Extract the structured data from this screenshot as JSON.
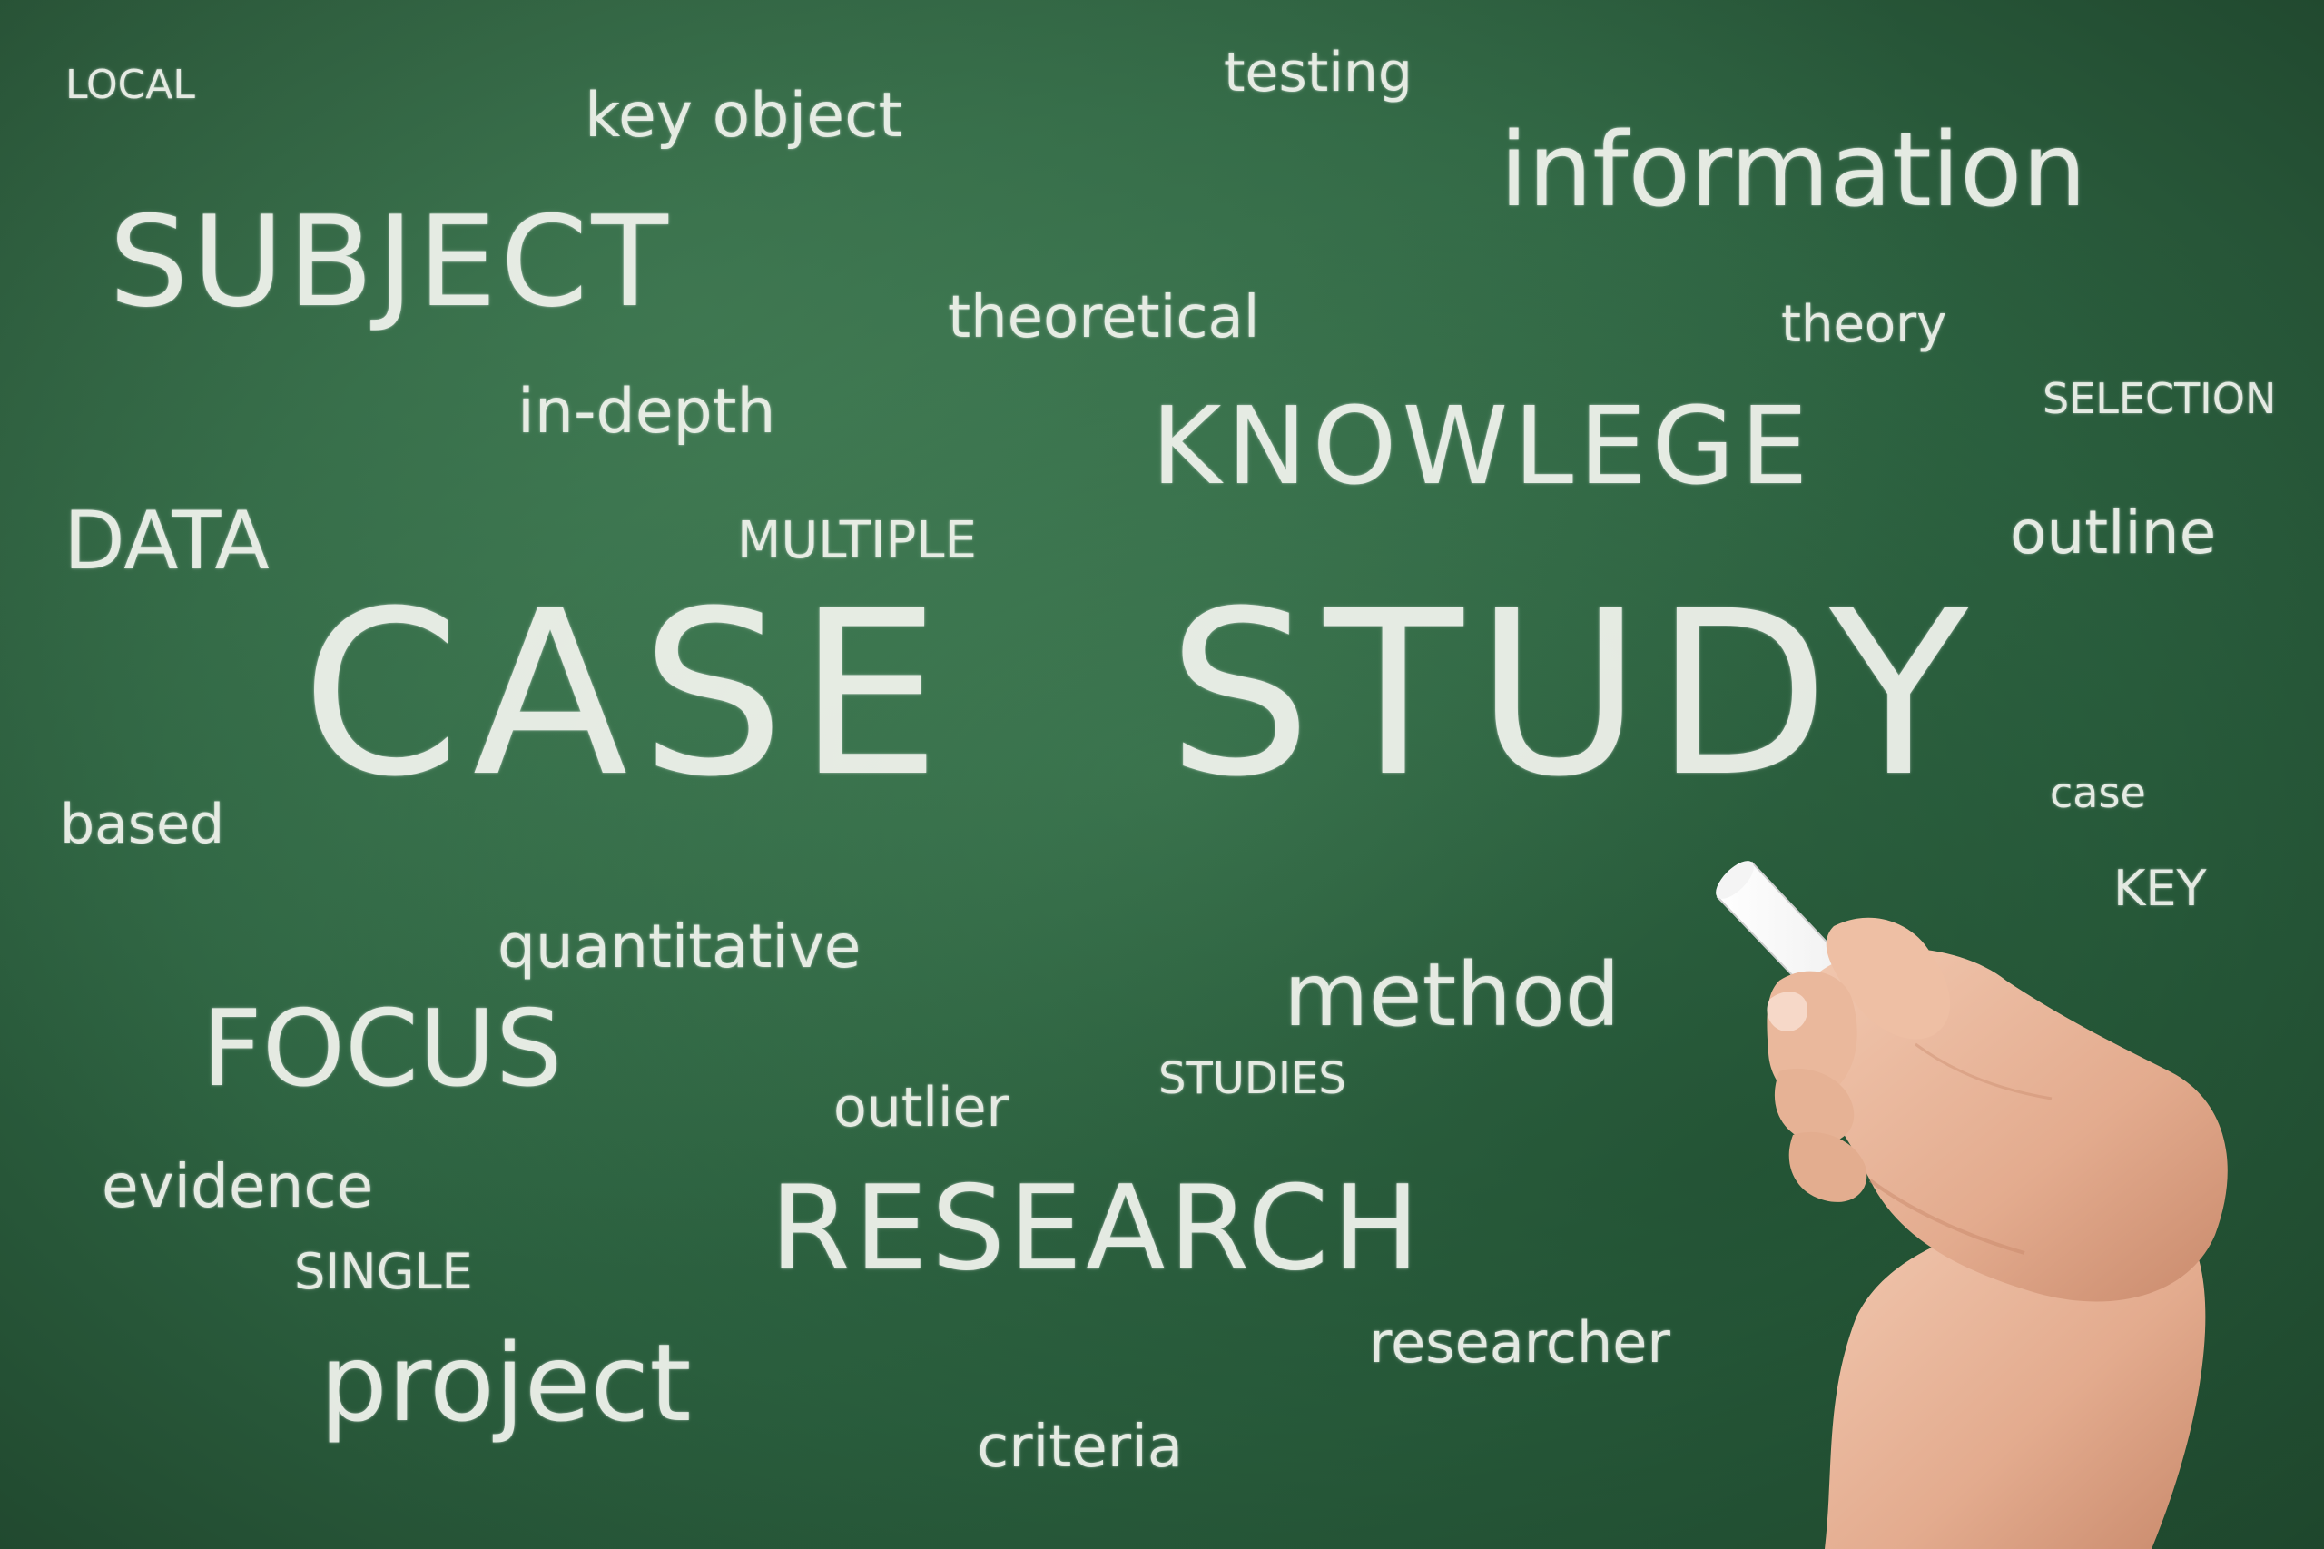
{
  "words": {
    "local": "LOCAL",
    "key_object": "key object",
    "testing": "testing",
    "information": "information",
    "subject": "SUBJECT",
    "theoretical": "theoretical",
    "theory": "theory",
    "selection": "SELECTION",
    "in_depth": "in-depth",
    "knowlege": "KNOWLEGE",
    "data": "DATA",
    "multiple": "MULTIPLE",
    "outline": "outline",
    "case": "CASE",
    "study": "STUDY",
    "based": "based",
    "case_small": "case",
    "key": "KEY",
    "quantitative": "quantitative",
    "method": "method",
    "focus": "FOCUS",
    "studies": "STUDIES",
    "outlier": "outlier",
    "evidence": "evidence",
    "research": "RESEARCH",
    "single": "SINGLE",
    "researcher": "researcher",
    "project": "project",
    "criteria": "criteria"
  },
  "colors": {
    "board": "#2f6a45",
    "chalk": "#f3f5ef",
    "skin": "#e7b59a"
  },
  "icons": {
    "hand": "hand-holding-chalk",
    "chalk": "chalk-stick"
  }
}
